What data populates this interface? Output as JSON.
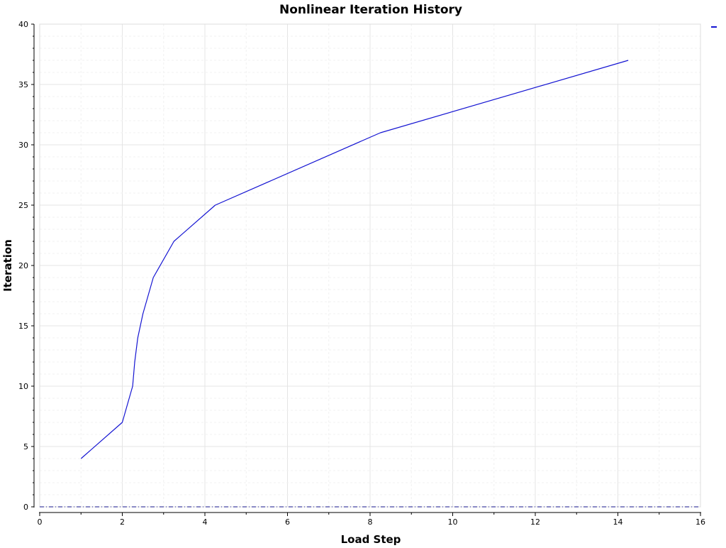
{
  "chart_data": {
    "type": "line",
    "title": "Nonlinear Iteration History",
    "xlabel": "Load Step",
    "ylabel": "Iteration",
    "xlim": [
      0,
      16
    ],
    "ylim": [
      0,
      40
    ],
    "x_ticks": [
      0,
      2,
      4,
      6,
      8,
      10,
      12,
      14,
      16
    ],
    "y_ticks": [
      0,
      5,
      10,
      15,
      20,
      25,
      30,
      35,
      40
    ],
    "x_tick_labels": [
      "0",
      "2",
      "4",
      "6",
      "8",
      "10",
      "12",
      "14",
      "16"
    ],
    "y_tick_labels": [
      "0",
      "5",
      "10",
      "15",
      "20",
      "25",
      "30",
      "35",
      "40"
    ],
    "grid": true,
    "legend": "top-right",
    "series": [
      {
        "color": "#1414d2",
        "x": [
          1.0,
          2.0,
          2.25,
          2.3,
          2.375,
          2.5,
          2.75,
          3.25,
          4.25,
          8.25,
          14.25
        ],
        "y": [
          4,
          7,
          10,
          12,
          14,
          16,
          19,
          22,
          25,
          31,
          37
        ]
      }
    ],
    "reference_lines": [
      {
        "axis": "y",
        "value": 0,
        "style": "dash-dot",
        "color": "#14148c"
      }
    ]
  }
}
